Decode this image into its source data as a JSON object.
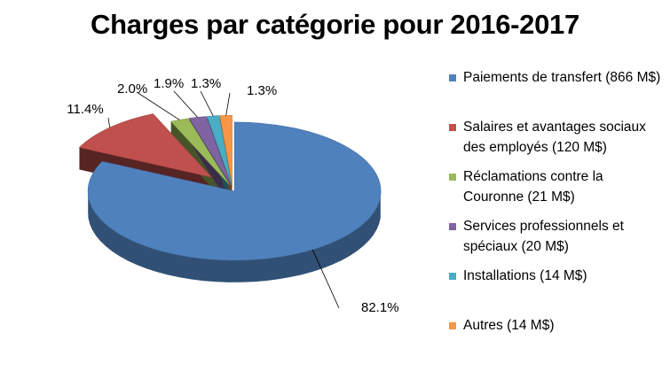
{
  "chart_data": {
    "type": "pie",
    "title": "Charges par catégorie pour 2016-2017",
    "categories": [
      "Paiements de transfert (866 M$)",
      "Salaires et avantages sociaux des employés (120 M$)",
      "Réclamations contre la Couronne (21 M$)",
      "Services professionnels et spéciaux (20 M$)",
      "Installations (14 M$)",
      "Autres (14 M$)"
    ],
    "values": [
      866,
      120,
      21,
      20,
      14,
      14
    ],
    "percent_labels": [
      "82.1%",
      "11.4%",
      "2.0%",
      "1.9%",
      "1.3%",
      "1.3%"
    ],
    "colors": [
      "#4F81BD",
      "#C0504D",
      "#9BBB59",
      "#8064A2",
      "#4BACC6",
      "#F79646"
    ],
    "legend_position": "right",
    "exploded": true,
    "three_d": true
  }
}
